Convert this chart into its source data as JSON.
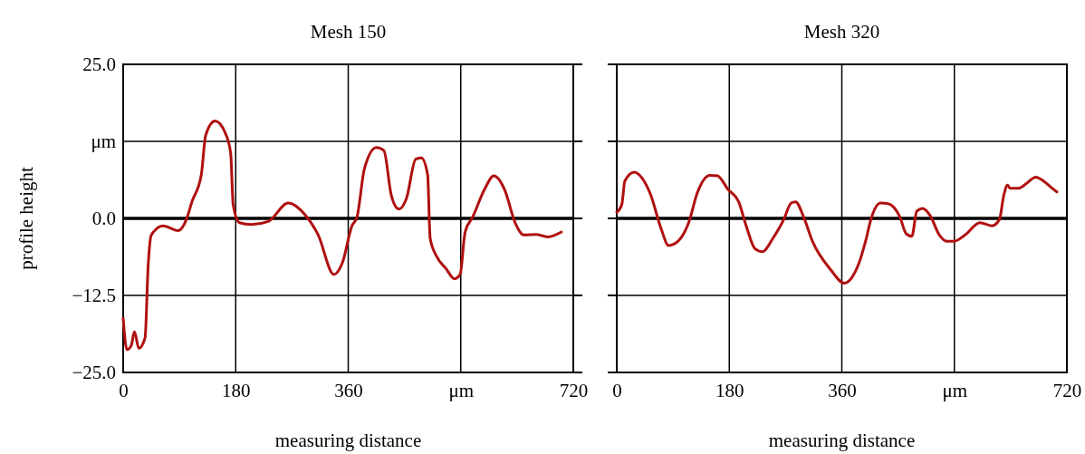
{
  "chart_data": [
    {
      "type": "line",
      "title": "Mesh 150",
      "xlabel": "measuring distance",
      "ylabel": "profile height",
      "xlim": [
        0,
        720
      ],
      "xticks": [
        0,
        180,
        360,
        {
          "value": 540,
          "label": "μm"
        },
        720
      ],
      "ylim": [
        -25,
        25
      ],
      "yticks": [
        {
          "value": -25,
          "label": "−25.0"
        },
        {
          "value": -12.5,
          "label": "−12.5"
        },
        {
          "value": 0,
          "label": "0.0"
        },
        {
          "value": 12.5,
          "label": "μm"
        },
        {
          "value": 25,
          "label": "25.0"
        }
      ],
      "grid": true,
      "ref_lines": [
        {
          "axis": "y",
          "value": 0,
          "color": "#000000"
        }
      ],
      "series": [
        {
          "color": "#b01010",
          "x": [
            0,
            6,
            13,
            18,
            25,
            35,
            40,
            45,
            64,
            88,
            101,
            110,
            125,
            132,
            147,
            164,
            172,
            176,
            186,
            205,
            232,
            264,
            290,
            312,
            337,
            351,
            366,
            374,
            386,
            405,
            417,
            429,
            441,
            453,
            468,
            477,
            487,
            491,
            501,
            516,
            530,
            539,
            547,
            559,
            578,
            593,
            610,
            627,
            641,
            660,
            679,
            701
          ],
          "values": [
            -16.2,
            -21.3,
            -20.6,
            -18.4,
            -21.1,
            -19.4,
            -7.6,
            -2.7,
            -1.2,
            -2.0,
            -0.2,
            2.7,
            7.1,
            13.5,
            15.8,
            13.7,
            10.5,
            2.2,
            -0.7,
            -1.0,
            -0.5,
            2.5,
            0.7,
            -2.7,
            -9.1,
            -7.1,
            -1.2,
            0.2,
            8.1,
            11.5,
            11.0,
            3.7,
            1.5,
            3.2,
            9.6,
            9.8,
            7.1,
            -3.2,
            -6.1,
            -8.1,
            -9.8,
            -9.1,
            -2.2,
            0.2,
            4.7,
            6.9,
            4.7,
            -0.7,
            -2.7,
            -2.6,
            -3.0,
            -2.2
          ]
        }
      ]
    },
    {
      "type": "line",
      "title": "Mesh 320",
      "xlabel": "measuring distance",
      "tick_labels": "x",
      "xlim": [
        0,
        720
      ],
      "xticks": [
        0,
        180,
        360,
        {
          "value": 540,
          "label": "μm"
        },
        720
      ],
      "ylim": [
        -25,
        25
      ],
      "yticks": [
        -25,
        -12.5,
        0,
        12.5,
        25
      ],
      "grid": true,
      "ref_lines": [
        {
          "axis": "y",
          "value": 0,
          "color": "#000000"
        }
      ],
      "series": [
        {
          "color": "#b01010",
          "x": [
            0,
            8,
            13,
            28,
            40,
            54,
            71,
            83,
            98,
            115,
            129,
            149,
            161,
            178,
            195,
            207,
            221,
            233,
            250,
            267,
            279,
            286,
            299,
            313,
            342,
            364,
            376,
            388,
            398,
            407,
            422,
            434,
            453,
            463,
            472,
            480,
            489,
            501,
            516,
            528,
            540,
            557,
            581,
            600,
            612,
            619,
            625,
            629,
            643,
            658,
            670,
            682,
            694,
            704
          ],
          "values": [
            1.0,
            2.2,
            6.1,
            7.5,
            6.6,
            3.9,
            -1.7,
            -4.4,
            -3.7,
            -0.7,
            4.2,
            7.0,
            6.9,
            4.7,
            2.7,
            -1.2,
            -4.9,
            -5.4,
            -3.2,
            -0.2,
            2.5,
            2.7,
            0.2,
            -3.7,
            -8.3,
            -10.5,
            -9.6,
            -7.1,
            -3.7,
            0,
            2.5,
            2.4,
            0.2,
            -2.5,
            -2.9,
            1.2,
            1.6,
            0.5,
            -2.7,
            -3.7,
            -3.7,
            -2.7,
            -0.7,
            -1.2,
            -0.2,
            3.7,
            5.4,
            4.9,
            4.9,
            5.9,
            6.7,
            6.1,
            5.1,
            4.3
          ]
        }
      ]
    }
  ]
}
